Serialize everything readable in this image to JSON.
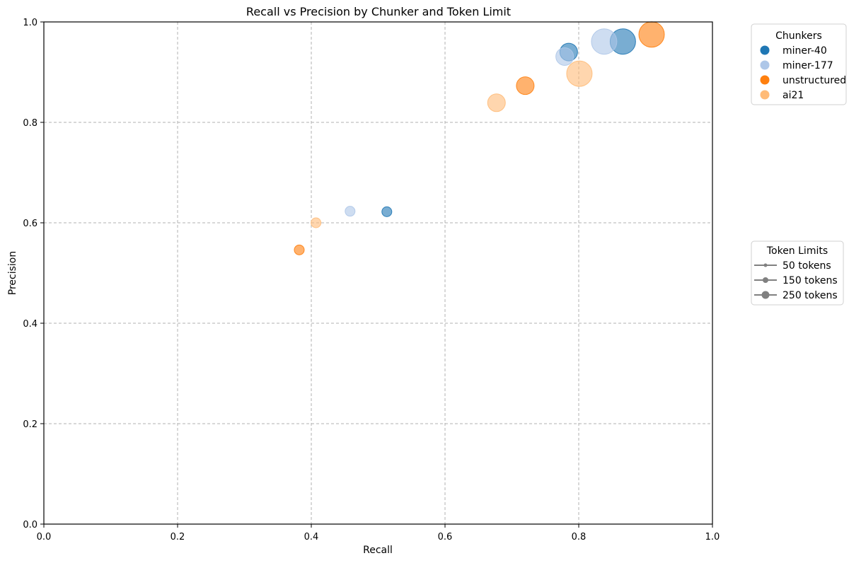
{
  "chart_data": {
    "type": "scatter",
    "title": "Recall vs Precision by Chunker and Token Limit",
    "xlabel": "Recall",
    "ylabel": "Precision",
    "xlim": [
      0.0,
      1.0
    ],
    "ylim": [
      0.0,
      1.0
    ],
    "xticks": [
      "0.0",
      "0.2",
      "0.4",
      "0.6",
      "0.8",
      "1.0"
    ],
    "yticks": [
      "0.0",
      "0.2",
      "0.4",
      "0.6",
      "0.8",
      "1.0"
    ],
    "grid": true,
    "legend_chunkers": {
      "title": "Chunkers",
      "placement": "outside-top-right"
    },
    "legend_tokens": {
      "title": "Token Limits",
      "placement": "outside-middle-right",
      "entries": [
        {
          "label": "50 tokens",
          "tokens": 50
        },
        {
          "label": "150 tokens",
          "tokens": 150
        },
        {
          "label": "250 tokens",
          "tokens": 250
        }
      ]
    },
    "series": [
      {
        "name": "miner-40",
        "color": "#1f77b4",
        "points": [
          {
            "x": 0.513,
            "y": 0.622,
            "tokens": 50
          },
          {
            "x": 0.785,
            "y": 0.94,
            "tokens": 150
          },
          {
            "x": 0.866,
            "y": 0.961,
            "tokens": 250
          }
        ]
      },
      {
        "name": "miner-177",
        "color": "#aec7e8",
        "points": [
          {
            "x": 0.458,
            "y": 0.623,
            "tokens": 50
          },
          {
            "x": 0.779,
            "y": 0.931,
            "tokens": 150
          },
          {
            "x": 0.838,
            "y": 0.961,
            "tokens": 250
          }
        ]
      },
      {
        "name": "unstructured",
        "color": "#ff7f0e",
        "points": [
          {
            "x": 0.382,
            "y": 0.546,
            "tokens": 50
          },
          {
            "x": 0.72,
            "y": 0.873,
            "tokens": 150
          },
          {
            "x": 0.909,
            "y": 0.975,
            "tokens": 250
          }
        ]
      },
      {
        "name": "ai21",
        "color": "#ffbb78",
        "points": [
          {
            "x": 0.407,
            "y": 0.6,
            "tokens": 50
          },
          {
            "x": 0.677,
            "y": 0.839,
            "tokens": 150
          },
          {
            "x": 0.801,
            "y": 0.897,
            "tokens": 250
          }
        ]
      }
    ]
  }
}
